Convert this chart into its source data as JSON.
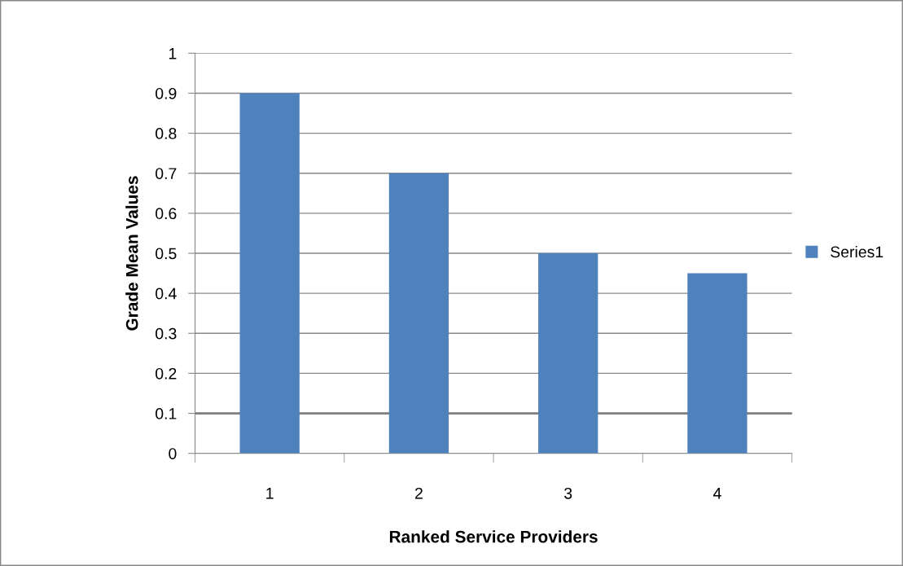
{
  "chart_data": {
    "type": "bar",
    "xlabel": "Ranked Service Providers",
    "ylabel": "Grade Mean Values",
    "categories": [
      "1",
      "2",
      "3",
      "4"
    ],
    "series": [
      {
        "name": "Series1",
        "color": "#4f81bd",
        "values": [
          0.9,
          0.7,
          0.5,
          0.45
        ]
      }
    ],
    "ylim": [
      0,
      1
    ],
    "yticks": [
      0,
      0.1,
      0.2,
      0.3,
      0.4,
      0.5,
      0.6,
      0.7,
      0.8,
      0.9,
      1
    ],
    "grid": "y",
    "legend": "right",
    "ref_lines": [
      {
        "axis": "y",
        "value": 0.1,
        "color": "#808080"
      }
    ]
  }
}
